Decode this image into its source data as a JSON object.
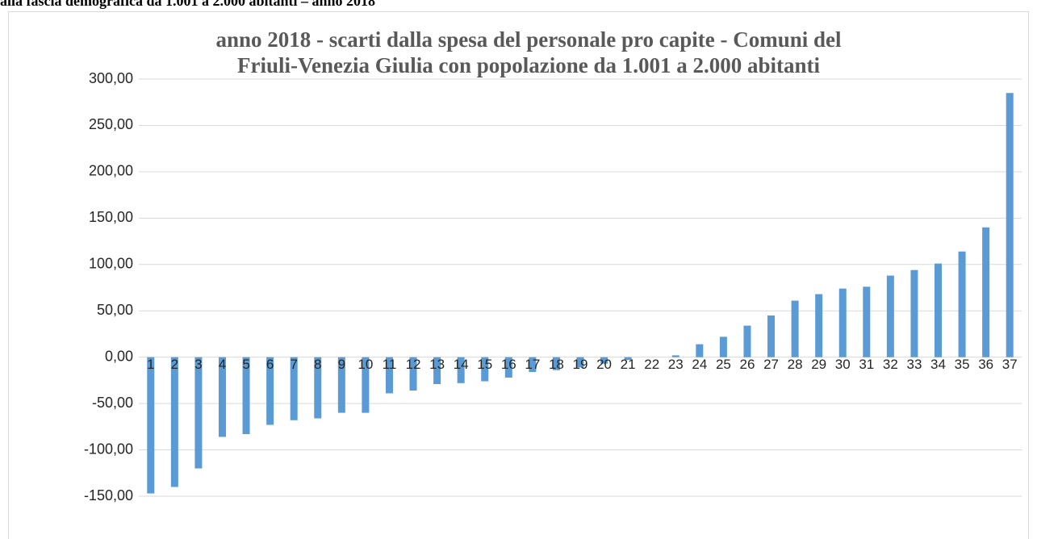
{
  "heading": "alla fascia demografica da 1.001 a 2.000 abitanti – anno 2018",
  "chart_data": {
    "type": "bar",
    "title": [
      "anno 2018 - scarti dalla spesa del personale pro capite - Comuni del",
      "Friuli-Venezia Giulia con popolazione  da 1.001 a 2.000 abitanti"
    ],
    "categories": [
      "1",
      "2",
      "3",
      "4",
      "5",
      "6",
      "7",
      "8",
      "9",
      "10",
      "11",
      "12",
      "13",
      "14",
      "15",
      "16",
      "17",
      "18",
      "19",
      "20",
      "21",
      "22",
      "23",
      "24",
      "25",
      "26",
      "27",
      "28",
      "29",
      "30",
      "31",
      "32",
      "33",
      "34",
      "35",
      "36",
      "37"
    ],
    "values": [
      -147,
      -140,
      -120,
      -86,
      -83,
      -73,
      -68,
      -66,
      -60,
      -60,
      -39,
      -36,
      -29,
      -28,
      -26,
      -22,
      -16,
      -14,
      -11,
      -7,
      -3,
      0,
      2,
      14,
      22,
      34,
      45,
      61,
      68,
      74,
      76,
      88,
      94,
      101,
      114,
      140,
      285
    ],
    "color": "#5b9bd5",
    "ylim": [
      -150,
      300
    ],
    "yticks": [
      {
        "value": -150,
        "label": "-150,00"
      },
      {
        "value": -100,
        "label": "-100,00"
      },
      {
        "value": -50,
        "label": "-50,00"
      },
      {
        "value": 0,
        "label": "0,00"
      },
      {
        "value": 50,
        "label": "50,00"
      },
      {
        "value": 100,
        "label": "100,00"
      },
      {
        "value": 150,
        "label": "150,00"
      },
      {
        "value": 200,
        "label": "200,00"
      },
      {
        "value": 250,
        "label": "250,00"
      },
      {
        "value": 300,
        "label": "300,00"
      }
    ],
    "grid": true
  }
}
